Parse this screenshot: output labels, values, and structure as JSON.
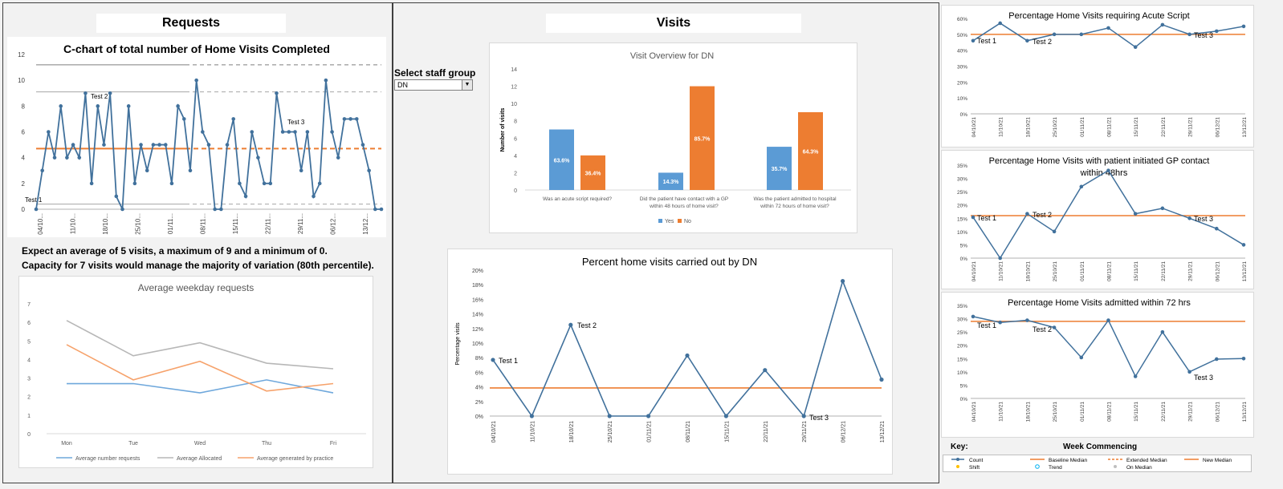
{
  "requests": {
    "header": "Requests",
    "cchart": {
      "title": "C-chart of total number of Home Visits Completed",
      "yticks": [
        "0",
        "2",
        "4",
        "6",
        "8",
        "10",
        "12"
      ],
      "xlabels": [
        "04/10...",
        "11/10...",
        "18/10...",
        "25/10...",
        "01/11...",
        "08/11...",
        "15/11...",
        "22/11...",
        "29/11...",
        "06/12...",
        "13/12..."
      ],
      "annotations": [
        "Test 1",
        "Test 2",
        "Test 3"
      ]
    },
    "note_line1": "Expect an average of 5 visits, a maximum of 9 and a minimum of 0.",
    "note_line2": "Capacity for 7 visits would manage the majority of variation (80th percentile).",
    "weekday_chart": {
      "title": "Average weekday requests",
      "yticks": [
        "0",
        "1",
        "2",
        "3",
        "4",
        "5",
        "6",
        "7"
      ],
      "legend": [
        "Average number requests",
        "Average Allocated",
        "Average generated by practice"
      ]
    }
  },
  "visits": {
    "header": "Visits",
    "select_label": "Select staff group",
    "select_value": "DN",
    "overview": {
      "title": "Visit Overview for DN",
      "ylabel": "Number of visits",
      "yticks": [
        "0",
        "2",
        "4",
        "6",
        "8",
        "10",
        "12",
        "14"
      ],
      "categories": [
        "Was an acute script required?",
        "Did the patient have contact with a GP within 48 hours of home visit?",
        "Was the patient admitted to hospital within 72 hours of home visit?"
      ],
      "legend": [
        "Yes",
        "No"
      ],
      "labels_yes": [
        "63.6%",
        "14.3%",
        "35.7%"
      ],
      "labels_no": [
        "36.4%",
        "85.7%",
        "64.3%"
      ]
    },
    "percent_dn": {
      "title": "Percent home visits carried out by DN",
      "ylabel": "Percentage visits",
      "yticks": [
        "0%",
        "2%",
        "4%",
        "6%",
        "8%",
        "10%",
        "12%",
        "14%",
        "16%",
        "18%",
        "20%"
      ],
      "annotations": [
        "Test 1",
        "Test 2",
        "Test 3"
      ]
    }
  },
  "right": {
    "acute": {
      "title": "Percentage Home Visits requiring Acute Script",
      "yticks": [
        "0%",
        "10%",
        "20%",
        "30%",
        "40%",
        "50%",
        "60%"
      ]
    },
    "gp": {
      "title_line1": "Percentage Home Visits with patient initiated GP contact",
      "title_line2": "within 48hrs",
      "yticks": [
        "0%",
        "5%",
        "10%",
        "15%",
        "20%",
        "25%",
        "30%",
        "35%"
      ]
    },
    "admitted": {
      "title": "Percentage Home Visits admitted within 72 hrs",
      "yticks": [
        "0%",
        "5%",
        "10%",
        "15%",
        "20%",
        "25%",
        "30%",
        "35%"
      ]
    },
    "dates": [
      "04/10/21",
      "11/10/21",
      "18/10/21",
      "25/10/21",
      "01/11/21",
      "08/11/21",
      "15/11/21",
      "22/11/21",
      "29/11/21",
      "06/12/21",
      "13/12/21"
    ],
    "annotations": [
      "Test 1",
      "Test 2",
      "Test 3"
    ],
    "key": {
      "title": "Key:",
      "week_label": "Week Commencing",
      "items": [
        "Count",
        "Baseline Median",
        "Extended Median",
        "New Median",
        "Shift",
        "Trend",
        "On Median"
      ]
    }
  },
  "chart_data": [
    {
      "type": "line",
      "title": "C-chart of total number of Home Visits Completed",
      "ylim": [
        0,
        12
      ],
      "values": [
        0,
        3,
        6,
        4,
        8,
        4,
        5,
        4,
        9,
        2,
        8,
        5,
        9,
        1,
        0,
        8,
        2,
        5,
        3,
        5,
        5,
        5,
        2,
        8,
        7,
        3,
        10,
        6,
        5,
        0,
        0,
        5,
        7,
        2,
        1,
        6,
        4,
        2,
        2,
        9,
        6,
        6,
        6,
        3,
        6,
        1,
        2,
        10,
        6,
        4,
        7,
        7,
        7,
        5,
        3,
        0,
        0
      ],
      "centre_line": 4.7,
      "upper_limit": 11.2,
      "upper_sigma": 9.1,
      "lower_sigma": 0.4
    },
    {
      "type": "line",
      "title": "Average weekday requests",
      "categories": [
        "Mon",
        "Tue",
        "Wed",
        "Thu",
        "Fri"
      ],
      "ylim": [
        0,
        7
      ],
      "series": [
        {
          "name": "Average number requests",
          "values": [
            2.7,
            2.7,
            2.2,
            2.9,
            2.2
          ],
          "color": "#6fa8dc"
        },
        {
          "name": "Average Allocated",
          "values": [
            6.1,
            4.2,
            4.9,
            3.8,
            3.5
          ],
          "color": "#b7b7b7"
        },
        {
          "name": "Average generated by practice",
          "values": [
            4.8,
            2.9,
            3.9,
            2.3,
            2.7
          ],
          "color": "#f6a26b"
        }
      ]
    },
    {
      "type": "bar",
      "title": "Visit Overview for DN",
      "categories": [
        "Was an acute script required?",
        "Did the patient have contact with a GP within 48 hours of home visit?",
        "Was the patient admitted to hospital within 72 hours of home visit?"
      ],
      "ylim": [
        0,
        14
      ],
      "series": [
        {
          "name": "Yes",
          "values": [
            7,
            2,
            5
          ],
          "color": "#5b9bd5"
        },
        {
          "name": "No",
          "values": [
            4,
            12,
            9
          ],
          "color": "#ed7d31"
        }
      ]
    },
    {
      "type": "line",
      "title": "Percent home visits carried out by DN",
      "categories": [
        "04/10/21",
        "11/10/21",
        "18/10/21",
        "25/10/21",
        "01/11/21",
        "08/11/21",
        "15/11/21",
        "22/11/21",
        "29/11/21",
        "06/12/21",
        "13/12/21"
      ],
      "ylim": [
        0,
        20
      ],
      "values": [
        7.7,
        0,
        12.5,
        0,
        0,
        8.3,
        0,
        6.3,
        0,
        18.5,
        5.0
      ],
      "median": 3.85
    },
    {
      "type": "line",
      "title": "Percentage Home Visits requiring Acute Script",
      "categories": [
        "04/10/21",
        "11/10/21",
        "18/10/21",
        "25/10/21",
        "01/11/21",
        "08/11/21",
        "15/11/21",
        "22/11/21",
        "29/11/21",
        "06/12/21",
        "13/12/21"
      ],
      "ylim": [
        0,
        60
      ],
      "values": [
        46,
        57,
        46,
        50,
        50,
        54,
        42,
        56,
        50,
        52,
        55
      ],
      "median": 50
    },
    {
      "type": "line",
      "title": "Percentage Home Visits with patient initiated GP contact within 48hrs",
      "categories": [
        "04/10/21",
        "11/10/21",
        "18/10/21",
        "25/10/21",
        "01/11/21",
        "08/11/21",
        "15/11/21",
        "22/11/21",
        "29/11/21",
        "06/12/21",
        "13/12/21"
      ],
      "ylim": [
        0,
        35
      ],
      "values": [
        15.4,
        0,
        16.7,
        10,
        26.9,
        33,
        16.7,
        18.75,
        15,
        11.1,
        5
      ],
      "median": 16
    },
    {
      "type": "line",
      "title": "Percentage Home Visits admitted within 72 hrs",
      "categories": [
        "04/10/21",
        "11/10/21",
        "18/10/21",
        "25/10/21",
        "01/11/21",
        "08/11/21",
        "15/11/21",
        "22/11/21",
        "29/11/21",
        "06/12/21",
        "13/12/21"
      ],
      "ylim": [
        0,
        35
      ],
      "values": [
        30.8,
        28.6,
        29.4,
        26.7,
        15.4,
        29.4,
        8.3,
        25,
        10,
        14.8,
        15
      ],
      "median": 29
    }
  ],
  "colors": {
    "blue_line": "#41719c",
    "orange": "#ed7d31",
    "grey_line": "#7f7f7f",
    "bar_yes": "#5b9bd5",
    "bar_no": "#ed7d31"
  }
}
